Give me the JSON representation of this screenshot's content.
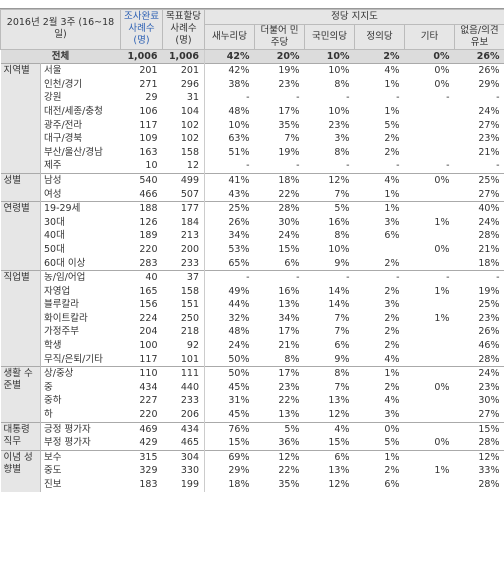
{
  "header": {
    "period": "2016년 2월 3주 (16~18일)",
    "completed": "조사완료 사례수 (명)",
    "target": "목표할당 사례수 (명)",
    "party_group": "정당 지지도",
    "parties": [
      "새누리당",
      "더불어 민주당",
      "국민의당",
      "정의당",
      "기타",
      "없음/의견유보"
    ]
  },
  "total": {
    "label": "전체",
    "cells": [
      "1,006",
      "1,006",
      "42%",
      "20%",
      "10%",
      "2%",
      "0%",
      "26%"
    ]
  },
  "groups": [
    {
      "name": "지역별",
      "rows": [
        {
          "label": "서울",
          "cells": [
            "201",
            "201",
            "42%",
            "19%",
            "10%",
            "4%",
            "0%",
            "26%"
          ]
        },
        {
          "label": "인천/경기",
          "cells": [
            "271",
            "296",
            "38%",
            "23%",
            "8%",
            "1%",
            "0%",
            "29%"
          ]
        },
        {
          "label": "강원",
          "cells": [
            "29",
            "31",
            "-",
            "-",
            "-",
            "-",
            "-",
            "-"
          ]
        },
        {
          "label": "대전/세종/충청",
          "cells": [
            "106",
            "104",
            "48%",
            "17%",
            "10%",
            "1%",
            null,
            "24%"
          ]
        },
        {
          "label": "광주/전라",
          "cells": [
            "117",
            "102",
            "10%",
            "35%",
            "23%",
            "5%",
            null,
            "27%"
          ]
        },
        {
          "label": "대구/경북",
          "cells": [
            "109",
            "102",
            "63%",
            "7%",
            "3%",
            "2%",
            null,
            "23%"
          ]
        },
        {
          "label": "부산/울산/경남",
          "cells": [
            "163",
            "158",
            "51%",
            "19%",
            "8%",
            "2%",
            null,
            "21%"
          ]
        },
        {
          "label": "제주",
          "cells": [
            "10",
            "12",
            "-",
            "-",
            "-",
            "-",
            "-",
            "-"
          ]
        }
      ]
    },
    {
      "name": "성별",
      "rows": [
        {
          "label": "남성",
          "cells": [
            "540",
            "499",
            "41%",
            "18%",
            "12%",
            "4%",
            "0%",
            "25%"
          ]
        },
        {
          "label": "여성",
          "cells": [
            "466",
            "507",
            "43%",
            "22%",
            "7%",
            "1%",
            null,
            "27%"
          ]
        }
      ]
    },
    {
      "name": "연령별",
      "rows": [
        {
          "label": "19-29세",
          "cells": [
            "188",
            "177",
            "25%",
            "28%",
            "5%",
            "1%",
            null,
            "40%"
          ]
        },
        {
          "label": "30대",
          "cells": [
            "126",
            "184",
            "26%",
            "30%",
            "16%",
            "3%",
            "1%",
            "24%"
          ]
        },
        {
          "label": "40대",
          "cells": [
            "189",
            "213",
            "34%",
            "24%",
            "8%",
            "6%",
            null,
            "28%"
          ]
        },
        {
          "label": "50대",
          "cells": [
            "220",
            "200",
            "53%",
            "15%",
            "10%",
            null,
            "0%",
            "21%"
          ]
        },
        {
          "label": "60대 이상",
          "cells": [
            "283",
            "233",
            "65%",
            "6%",
            "9%",
            "2%",
            null,
            "18%"
          ]
        }
      ]
    },
    {
      "name": "직업별",
      "rows": [
        {
          "label": "농/임/어업",
          "cells": [
            "40",
            "37",
            "-",
            "-",
            "-",
            "-",
            "-",
            "-"
          ]
        },
        {
          "label": "자영업",
          "cells": [
            "165",
            "158",
            "49%",
            "16%",
            "14%",
            "2%",
            "1%",
            "19%"
          ]
        },
        {
          "label": "블루칼라",
          "cells": [
            "156",
            "151",
            "44%",
            "13%",
            "14%",
            "3%",
            null,
            "25%"
          ]
        },
        {
          "label": "화이트칼라",
          "cells": [
            "224",
            "250",
            "32%",
            "34%",
            "7%",
            "2%",
            "1%",
            "23%"
          ]
        },
        {
          "label": "가정주부",
          "cells": [
            "204",
            "218",
            "48%",
            "17%",
            "7%",
            "2%",
            null,
            "26%"
          ]
        },
        {
          "label": "학생",
          "cells": [
            "100",
            "92",
            "24%",
            "21%",
            "6%",
            "2%",
            null,
            "46%"
          ]
        },
        {
          "label": "무직/은퇴/기타",
          "cells": [
            "117",
            "101",
            "50%",
            "8%",
            "9%",
            "4%",
            null,
            "28%"
          ]
        }
      ]
    },
    {
      "name": "생활 수준별",
      "rows": [
        {
          "label": "상/중상",
          "cells": [
            "110",
            "111",
            "50%",
            "17%",
            "8%",
            "1%",
            null,
            "24%"
          ]
        },
        {
          "label": "중",
          "cells": [
            "434",
            "440",
            "45%",
            "23%",
            "7%",
            "2%",
            "0%",
            "23%"
          ]
        },
        {
          "label": "중하",
          "cells": [
            "227",
            "233",
            "31%",
            "22%",
            "13%",
            "4%",
            null,
            "30%"
          ]
        },
        {
          "label": "하",
          "cells": [
            "220",
            "206",
            "45%",
            "13%",
            "12%",
            "3%",
            null,
            "27%"
          ]
        }
      ]
    },
    {
      "name": "대통령 직무",
      "rows": [
        {
          "label": "긍정 평가자",
          "cells": [
            "469",
            "434",
            "76%",
            "5%",
            "4%",
            "0%",
            null,
            "15%"
          ]
        },
        {
          "label": "부정 평가자",
          "cells": [
            "429",
            "465",
            "15%",
            "36%",
            "15%",
            "5%",
            "0%",
            "28%"
          ]
        }
      ]
    },
    {
      "name": "이념 성향별",
      "rows": [
        {
          "label": "보수",
          "cells": [
            "315",
            "304",
            "69%",
            "12%",
            "6%",
            "1%",
            null,
            "12%"
          ]
        },
        {
          "label": "중도",
          "cells": [
            "329",
            "330",
            "29%",
            "22%",
            "13%",
            "2%",
            "1%",
            "33%"
          ]
        },
        {
          "label": "진보",
          "cells": [
            "183",
            "199",
            "18%",
            "35%",
            "12%",
            "6%",
            null,
            "28%"
          ]
        }
      ]
    }
  ]
}
